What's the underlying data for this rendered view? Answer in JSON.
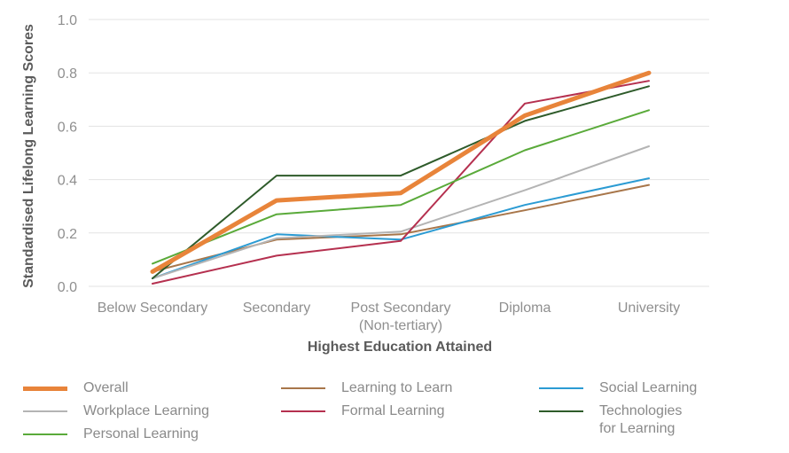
{
  "chart_data": {
    "type": "line",
    "xlabel": "Highest Education Attained",
    "ylabel": "Standardised Lifelong Learning Scores",
    "categories": [
      [
        "Below Secondary"
      ],
      [
        "Secondary"
      ],
      [
        "Post Secondary",
        "(Non-tertiary)"
      ],
      [
        "Diploma"
      ],
      [
        "University"
      ]
    ],
    "ylim": [
      0,
      1.0
    ],
    "yticks": [
      "0.0",
      "0.2",
      "0.4",
      "0.6",
      "0.8",
      "1.0"
    ],
    "grid": "horizontal",
    "legend_position": "bottom",
    "series": [
      {
        "name": "Overall",
        "color": "#e8843a",
        "width": 5,
        "values": [
          0.055,
          0.322,
          0.35,
          0.64,
          0.8
        ]
      },
      {
        "name": "Learning to Learn",
        "color": "#a8764a",
        "width": 2,
        "values": [
          0.055,
          0.175,
          0.195,
          0.285,
          0.38
        ]
      },
      {
        "name": "Social Learning",
        "color": "#2b9bd3",
        "width": 2,
        "values": [
          0.03,
          0.195,
          0.175,
          0.305,
          0.405
        ]
      },
      {
        "name": "Workplace Learning",
        "color": "#b4b4b4",
        "width": 2,
        "values": [
          0.03,
          0.18,
          0.205,
          0.36,
          0.525
        ]
      },
      {
        "name": "Formal Learning",
        "color": "#b5304f",
        "width": 2,
        "values": [
          0.01,
          0.115,
          0.17,
          0.685,
          0.77
        ]
      },
      {
        "name": "Technologies for Learning",
        "color": "#2e5b2a",
        "width": 2,
        "values": [
          0.03,
          0.415,
          0.415,
          0.62,
          0.75
        ]
      },
      {
        "name": "Personal Learning",
        "color": "#5aaa3a",
        "width": 2,
        "values": [
          0.085,
          0.27,
          0.305,
          0.51,
          0.66
        ]
      }
    ]
  },
  "legend": {
    "items": [
      {
        "label": "Overall",
        "color": "#e8843a",
        "weight": 5
      },
      {
        "label": "Learning to Learn",
        "color": "#a8764a",
        "weight": 2
      },
      {
        "label": "Social Learning",
        "color": "#2b9bd3",
        "weight": 2
      },
      {
        "label": "Workplace Learning",
        "color": "#b4b4b4",
        "weight": 2
      },
      {
        "label": "Formal Learning",
        "color": "#b5304f",
        "weight": 2
      },
      {
        "label": "Technologies\nfor Learning",
        "color": "#2e5b2a",
        "weight": 2
      },
      {
        "label": "Personal Learning",
        "color": "#5aaa3a",
        "weight": 2
      }
    ]
  }
}
